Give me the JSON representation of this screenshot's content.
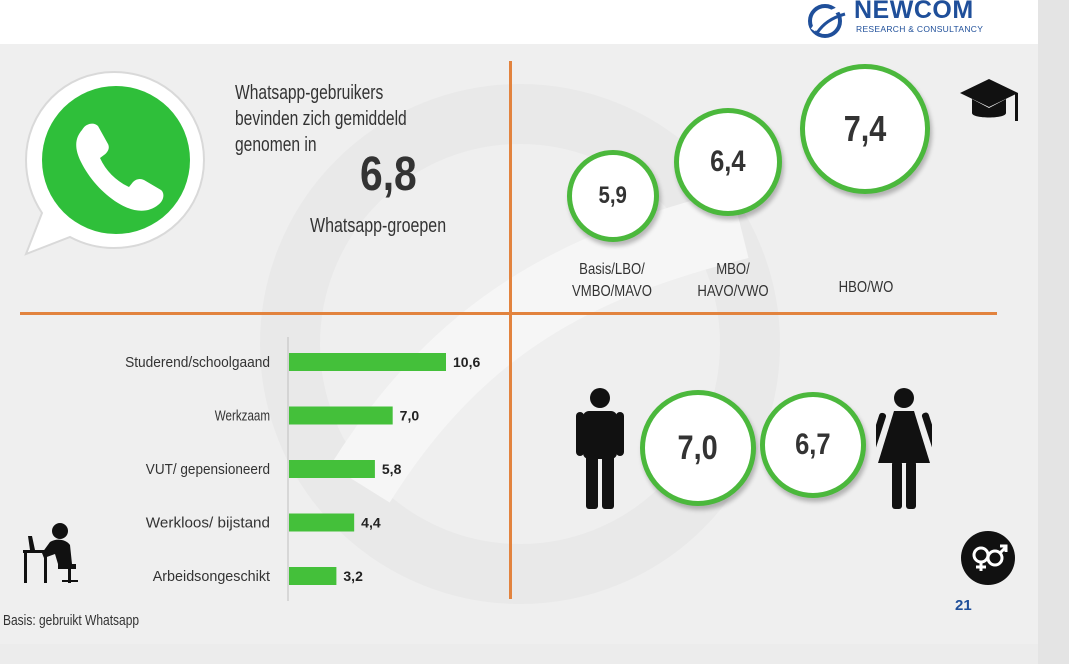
{
  "logo": {
    "name": "NEWCOM",
    "tagline": "RESEARCH & CONSULTANCY"
  },
  "intro": {
    "line1": "Whatsapp-gebruikers",
    "line2": "bevinden zich gemiddeld",
    "line3": "genomen in",
    "value": "6,8",
    "unit": "Whatsapp-groepen"
  },
  "education": [
    {
      "label_line1": "Basis/LBO/",
      "label_line2": "VMBO/MAVO",
      "value": "5,9"
    },
    {
      "label_line1": "MBO/",
      "label_line2": "HAVO/VWO",
      "value": "6,4"
    },
    {
      "label_line1": "HBO/WO",
      "label_line2": "",
      "value": "7,4"
    }
  ],
  "gender": {
    "male_value": "7,0",
    "female_value": "6,7"
  },
  "chart_data": {
    "type": "bar",
    "orientation": "horizontal",
    "categories": [
      "Studerend/schoolgaand",
      "Werkzaam",
      "VUT/ gepensioneerd",
      "Werkloos/ bijstand",
      "Arbeidsongeschikt"
    ],
    "values": [
      10.6,
      7.0,
      5.8,
      4.4,
      3.2
    ],
    "value_labels": [
      "10,6",
      "7,0",
      "5,8",
      "4,4",
      "3,2"
    ],
    "bar_color": "#44c03a",
    "xlim": [
      0,
      12
    ],
    "grid": false
  },
  "footer": {
    "basis": "Basis: gebruikt Whatsapp",
    "page_number": "21"
  },
  "colors": {
    "accent_green": "#4bb83c",
    "divider_orange": "#e2833e",
    "brand_blue": "#1f4f9a"
  },
  "icons": [
    "whatsapp-logo-icon",
    "graduation-cap-icon",
    "male-person-icon",
    "female-person-icon",
    "gender-symbol-icon",
    "person-at-desk-icon"
  ]
}
